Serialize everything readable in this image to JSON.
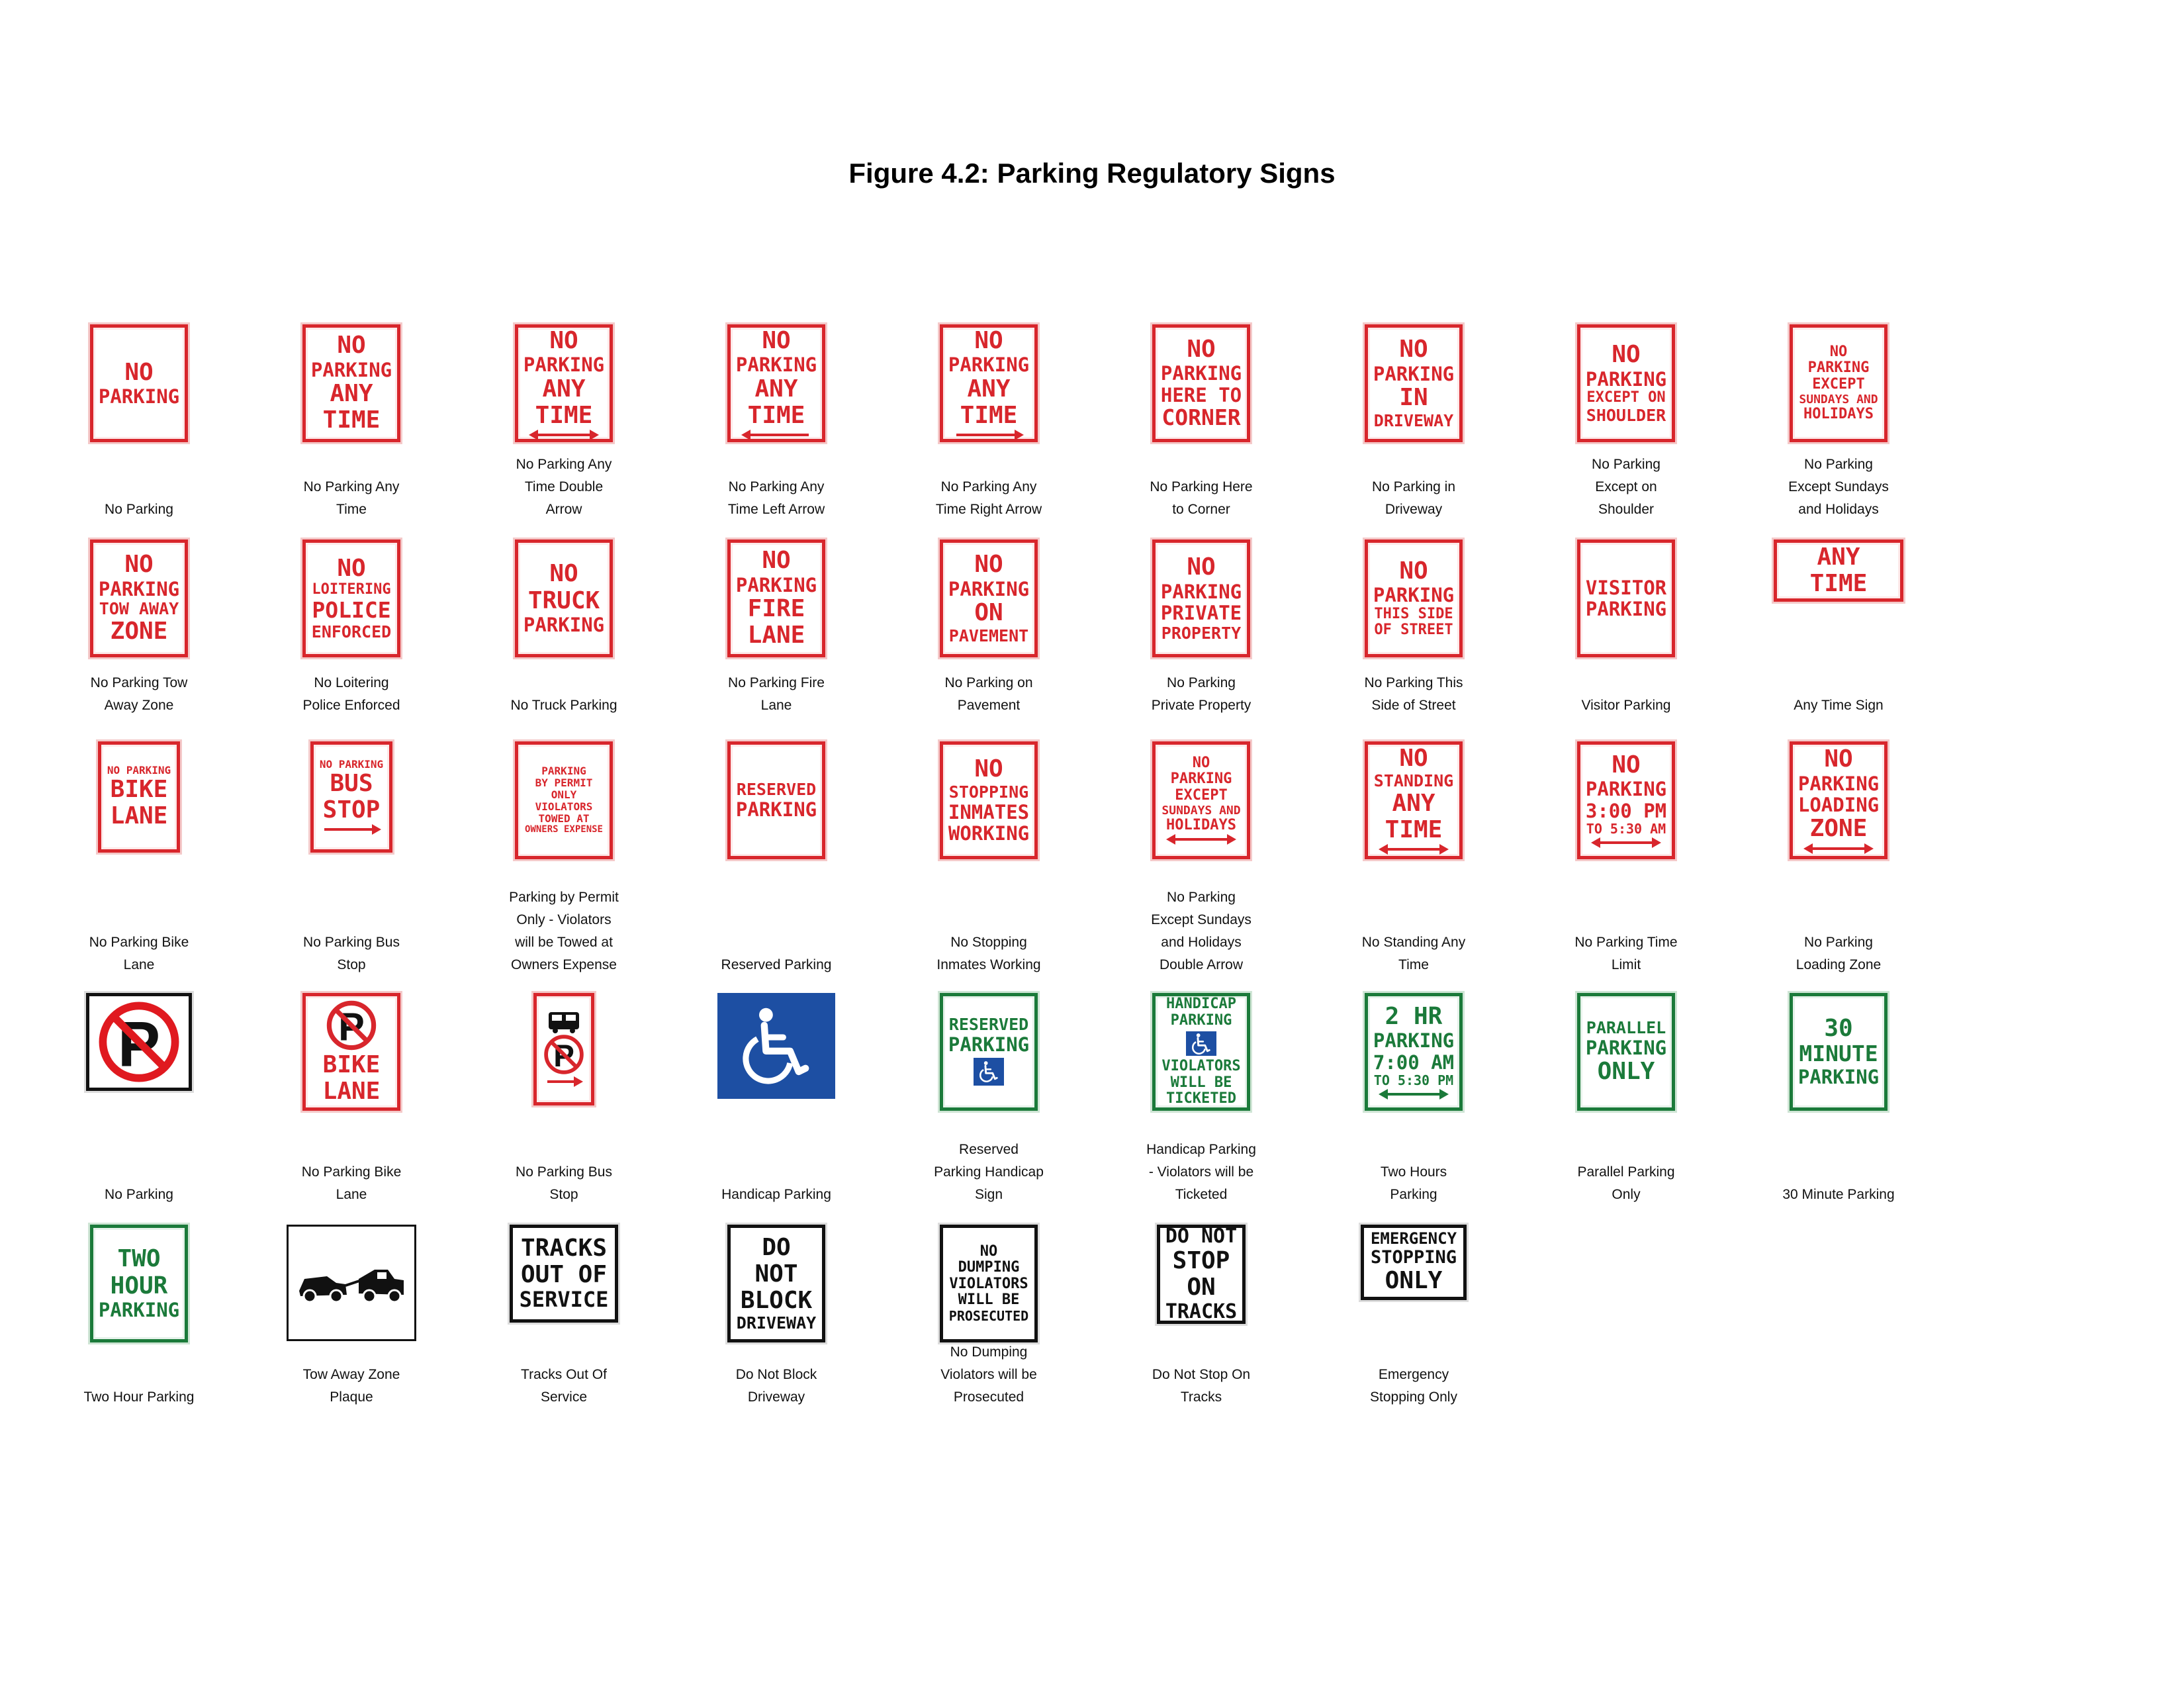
{
  "title": "Figure 4.2: Parking Regulatory Signs",
  "colors": {
    "red": "#d8262c",
    "green": "#1b7a3a",
    "black": "#111111",
    "blue": "#1d4fa3"
  },
  "signs": [
    {
      "style": "red",
      "text": [
        "NO",
        "PARKING"
      ],
      "caption": [
        "No Parking"
      ]
    },
    {
      "style": "red",
      "text": [
        "NO",
        "PARKING",
        "ANY",
        "TIME"
      ],
      "caption": [
        "No Parking Any",
        "Time"
      ]
    },
    {
      "style": "red",
      "text": [
        "NO",
        "PARKING",
        "ANY",
        "TIME"
      ],
      "arrow": "double",
      "caption": [
        "No Parking Any",
        "Time Double",
        "Arrow"
      ]
    },
    {
      "style": "red",
      "text": [
        "NO",
        "PARKING",
        "ANY",
        "TIME"
      ],
      "arrow": "left",
      "caption": [
        "No Parking Any",
        "Time Left Arrow"
      ]
    },
    {
      "style": "red",
      "text": [
        "NO",
        "PARKING",
        "ANY",
        "TIME"
      ],
      "arrow": "right",
      "caption": [
        "No Parking Any",
        "Time Right Arrow"
      ]
    },
    {
      "style": "red",
      "text": [
        "NO",
        "PARKING",
        "HERE TO",
        "CORNER"
      ],
      "caption": [
        "No Parking Here",
        "to Corner"
      ]
    },
    {
      "style": "red",
      "text": [
        "NO",
        "PARKING",
        "IN",
        "DRIVEWAY"
      ],
      "caption": [
        "No Parking in",
        "Driveway"
      ]
    },
    {
      "style": "red",
      "text": [
        "NO",
        "PARKING",
        "EXCEPT ON",
        "SHOULDER"
      ],
      "caption": [
        "No Parking",
        "Except on",
        "Shoulder"
      ]
    },
    {
      "style": "red",
      "text": [
        "NO",
        "PARKING",
        "EXCEPT",
        "SUNDAYS AND",
        "HOLIDAYS"
      ],
      "caption": [
        "No Parking",
        "Except Sundays",
        "and Holidays"
      ]
    },
    {
      "style": "red",
      "text": [
        "NO",
        "PARKING",
        "TOW AWAY",
        "ZONE"
      ],
      "caption": [
        "No Parking Tow",
        "Away Zone"
      ]
    },
    {
      "style": "red",
      "text": [
        "NO",
        "LOITERING",
        "POLICE",
        "ENFORCED"
      ],
      "caption": [
        "No Loitering",
        "Police Enforced"
      ]
    },
    {
      "style": "red",
      "text": [
        "NO",
        "TRUCK",
        "PARKING"
      ],
      "caption": [
        "No Truck Parking"
      ]
    },
    {
      "style": "red",
      "text": [
        "NO",
        "PARKING",
        "FIRE",
        "LANE"
      ],
      "caption": [
        "No Parking Fire",
        "Lane"
      ]
    },
    {
      "style": "red",
      "text": [
        "NO",
        "PARKING",
        "ON",
        "PAVEMENT"
      ],
      "caption": [
        "No Parking on",
        "Pavement"
      ]
    },
    {
      "style": "red",
      "text": [
        "NO",
        "PARKING",
        "PRIVATE",
        "PROPERTY"
      ],
      "caption": [
        "No Parking",
        "Private Property"
      ]
    },
    {
      "style": "red",
      "text": [
        "NO",
        "PARKING",
        "THIS SIDE",
        "OF STREET"
      ],
      "caption": [
        "No Parking This",
        "Side of Street"
      ]
    },
    {
      "style": "red",
      "text": [
        "VISITOR",
        "PARKING"
      ],
      "caption": [
        "Visitor Parking"
      ]
    },
    {
      "style": "red",
      "text": [
        "ANY",
        "TIME"
      ],
      "wide": true,
      "caption": [
        "Any Time Sign"
      ]
    },
    {
      "style": "red",
      "text": [
        "NO PARKING",
        "BIKE",
        "LANE"
      ],
      "caption": [
        "No Parking Bike",
        "Lane"
      ]
    },
    {
      "style": "red",
      "text": [
        "NO PARKING",
        "BUS",
        "STOP"
      ],
      "arrow": "right",
      "caption": [
        "No Parking Bus",
        "Stop"
      ]
    },
    {
      "style": "red",
      "text": [
        "PARKING",
        "BY PERMIT",
        "ONLY",
        "VIOLATORS",
        "TOWED AT",
        "OWNERS EXPENSE"
      ],
      "caption": [
        "Parking by Permit",
        "Only - Violators",
        "will be Towed at",
        "Owners Expense"
      ]
    },
    {
      "style": "red",
      "text": [
        "RESERVED",
        "PARKING"
      ],
      "caption": [
        "Reserved Parking"
      ]
    },
    {
      "style": "red",
      "text": [
        "NO",
        "STOPPING",
        "INMATES",
        "WORKING"
      ],
      "caption": [
        "No Stopping",
        "Inmates Working"
      ]
    },
    {
      "style": "red",
      "text": [
        "NO",
        "PARKING",
        "EXCEPT",
        "SUNDAYS AND",
        "HOLIDAYS"
      ],
      "arrow": "double",
      "caption": [
        "No Parking",
        "Except Sundays",
        "and Holidays",
        "Double Arrow"
      ]
    },
    {
      "style": "red",
      "text": [
        "NO",
        "STANDING",
        "ANY",
        "TIME"
      ],
      "arrow": "double",
      "caption": [
        "No Standing Any",
        "Time"
      ]
    },
    {
      "style": "red",
      "text": [
        "NO",
        "PARKING",
        "3:00 PM",
        "TO 5:30 AM"
      ],
      "arrow": "double",
      "caption": [
        "No Parking Time",
        "Limit"
      ]
    },
    {
      "style": "red",
      "text": [
        "NO",
        "PARKING",
        "LOADING",
        "ZONE"
      ],
      "arrow": "double",
      "caption": [
        "No Parking",
        "Loading Zone"
      ]
    },
    {
      "style": "black",
      "symbol": "no-p",
      "caption": [
        "No Parking"
      ]
    },
    {
      "style": "red",
      "symbol": "no-p-small",
      "text": [
        "BIKE",
        "LANE"
      ],
      "caption": [
        "No Parking Bike",
        "Lane"
      ]
    },
    {
      "style": "red",
      "symbol": "bus-no-p",
      "arrow": "right",
      "caption": [
        "No Parking Bus",
        "Stop"
      ]
    },
    {
      "style": "blue",
      "symbol": "wheelchair",
      "caption": [
        "Handicap Parking"
      ]
    },
    {
      "style": "green",
      "symbol": "wheelchair-small",
      "text": [
        "RESERVED",
        "PARKING"
      ],
      "caption": [
        "Reserved",
        "Parking Handicap",
        "Sign"
      ]
    },
    {
      "style": "green",
      "symbol": "wheelchair-small",
      "text": [
        "HANDICAP",
        "PARKING",
        "VIOLATORS",
        "WILL BE",
        "TICKETED"
      ],
      "caption": [
        "Handicap Parking",
        "- Violators will be",
        "Ticketed"
      ]
    },
    {
      "style": "green",
      "text": [
        "2 HR",
        "PARKING",
        "7:00 AM",
        "TO 5:30 PM"
      ],
      "arrow": "double",
      "caption": [
        "Two Hours",
        "Parking"
      ]
    },
    {
      "style": "green",
      "text": [
        "PARALLEL",
        "PARKING",
        "ONLY"
      ],
      "caption": [
        "Parallel Parking",
        "Only"
      ]
    },
    {
      "style": "green",
      "text": [
        "30",
        "MINUTE",
        "PARKING"
      ],
      "caption": [
        "30 Minute Parking"
      ]
    },
    {
      "style": "green",
      "text": [
        "TWO",
        "HOUR",
        "PARKING"
      ],
      "caption": [
        "Two Hour Parking"
      ]
    },
    {
      "style": "plain",
      "symbol": "tow",
      "caption": [
        "Tow Away Zone",
        "Plaque"
      ]
    },
    {
      "style": "black",
      "text": [
        "TRACKS",
        "OUT OF",
        "SERVICE"
      ],
      "caption": [
        "Tracks Out Of",
        "Service"
      ]
    },
    {
      "style": "black",
      "text": [
        "DO",
        "NOT",
        "BLOCK",
        "DRIVEWAY"
      ],
      "caption": [
        "Do Not Block",
        "Driveway"
      ]
    },
    {
      "style": "black",
      "text": [
        "NO",
        "DUMPING",
        "VIOLATORS",
        "WILL BE",
        "PROSECUTED"
      ],
      "caption": [
        "No Dumping",
        "Violators will be",
        "Prosecuted"
      ]
    },
    {
      "style": "black",
      "text": [
        "DO NOT",
        "STOP",
        "ON",
        "TRACKS"
      ],
      "caption": [
        "Do Not Stop On",
        "Tracks"
      ]
    },
    {
      "style": "black",
      "text": [
        "EMERGENCY",
        "STOPPING",
        "ONLY"
      ],
      "caption": [
        "Emergency",
        "Stopping Only"
      ]
    }
  ]
}
